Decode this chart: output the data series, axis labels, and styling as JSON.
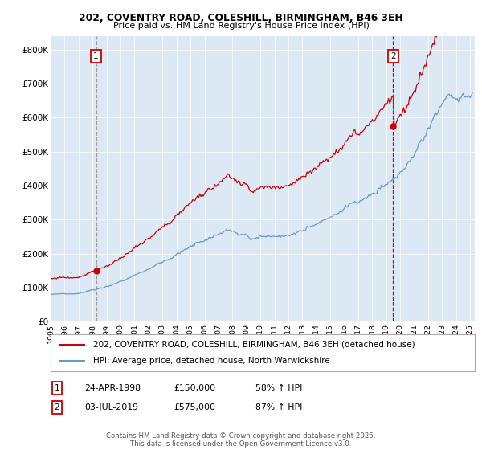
{
  "title1": "202, COVENTRY ROAD, COLESHILL, BIRMINGHAM, B46 3EH",
  "title2": "Price paid vs. HM Land Registry's House Price Index (HPI)",
  "legend1": "202, COVENTRY ROAD, COLESHILL, BIRMINGHAM, B46 3EH (detached house)",
  "legend2": "HPI: Average price, detached house, North Warwickshire",
  "annotation1_date": "24-APR-1998",
  "annotation1_price": "£150,000",
  "annotation1_hpi": "58% ↑ HPI",
  "annotation2_date": "03-JUL-2019",
  "annotation2_price": "£575,000",
  "annotation2_hpi": "87% ↑ HPI",
  "footer": "Contains HM Land Registry data © Crown copyright and database right 2025.\nThis data is licensed under the Open Government Licence v3.0.",
  "hpi_color": "#6699cc",
  "price_color": "#cc0000",
  "marker_color": "#cc0000",
  "vline1_color": "#999999",
  "vline2_color": "#cc0000",
  "bg_color": "#dce9f5",
  "ylim": [
    0,
    840000
  ],
  "yticks": [
    0,
    100000,
    200000,
    300000,
    400000,
    500000,
    600000,
    700000,
    800000
  ],
  "ytick_labels": [
    "£0",
    "£100K",
    "£200K",
    "£300K",
    "£400K",
    "£500K",
    "£600K",
    "£700K",
    "£800K"
  ]
}
